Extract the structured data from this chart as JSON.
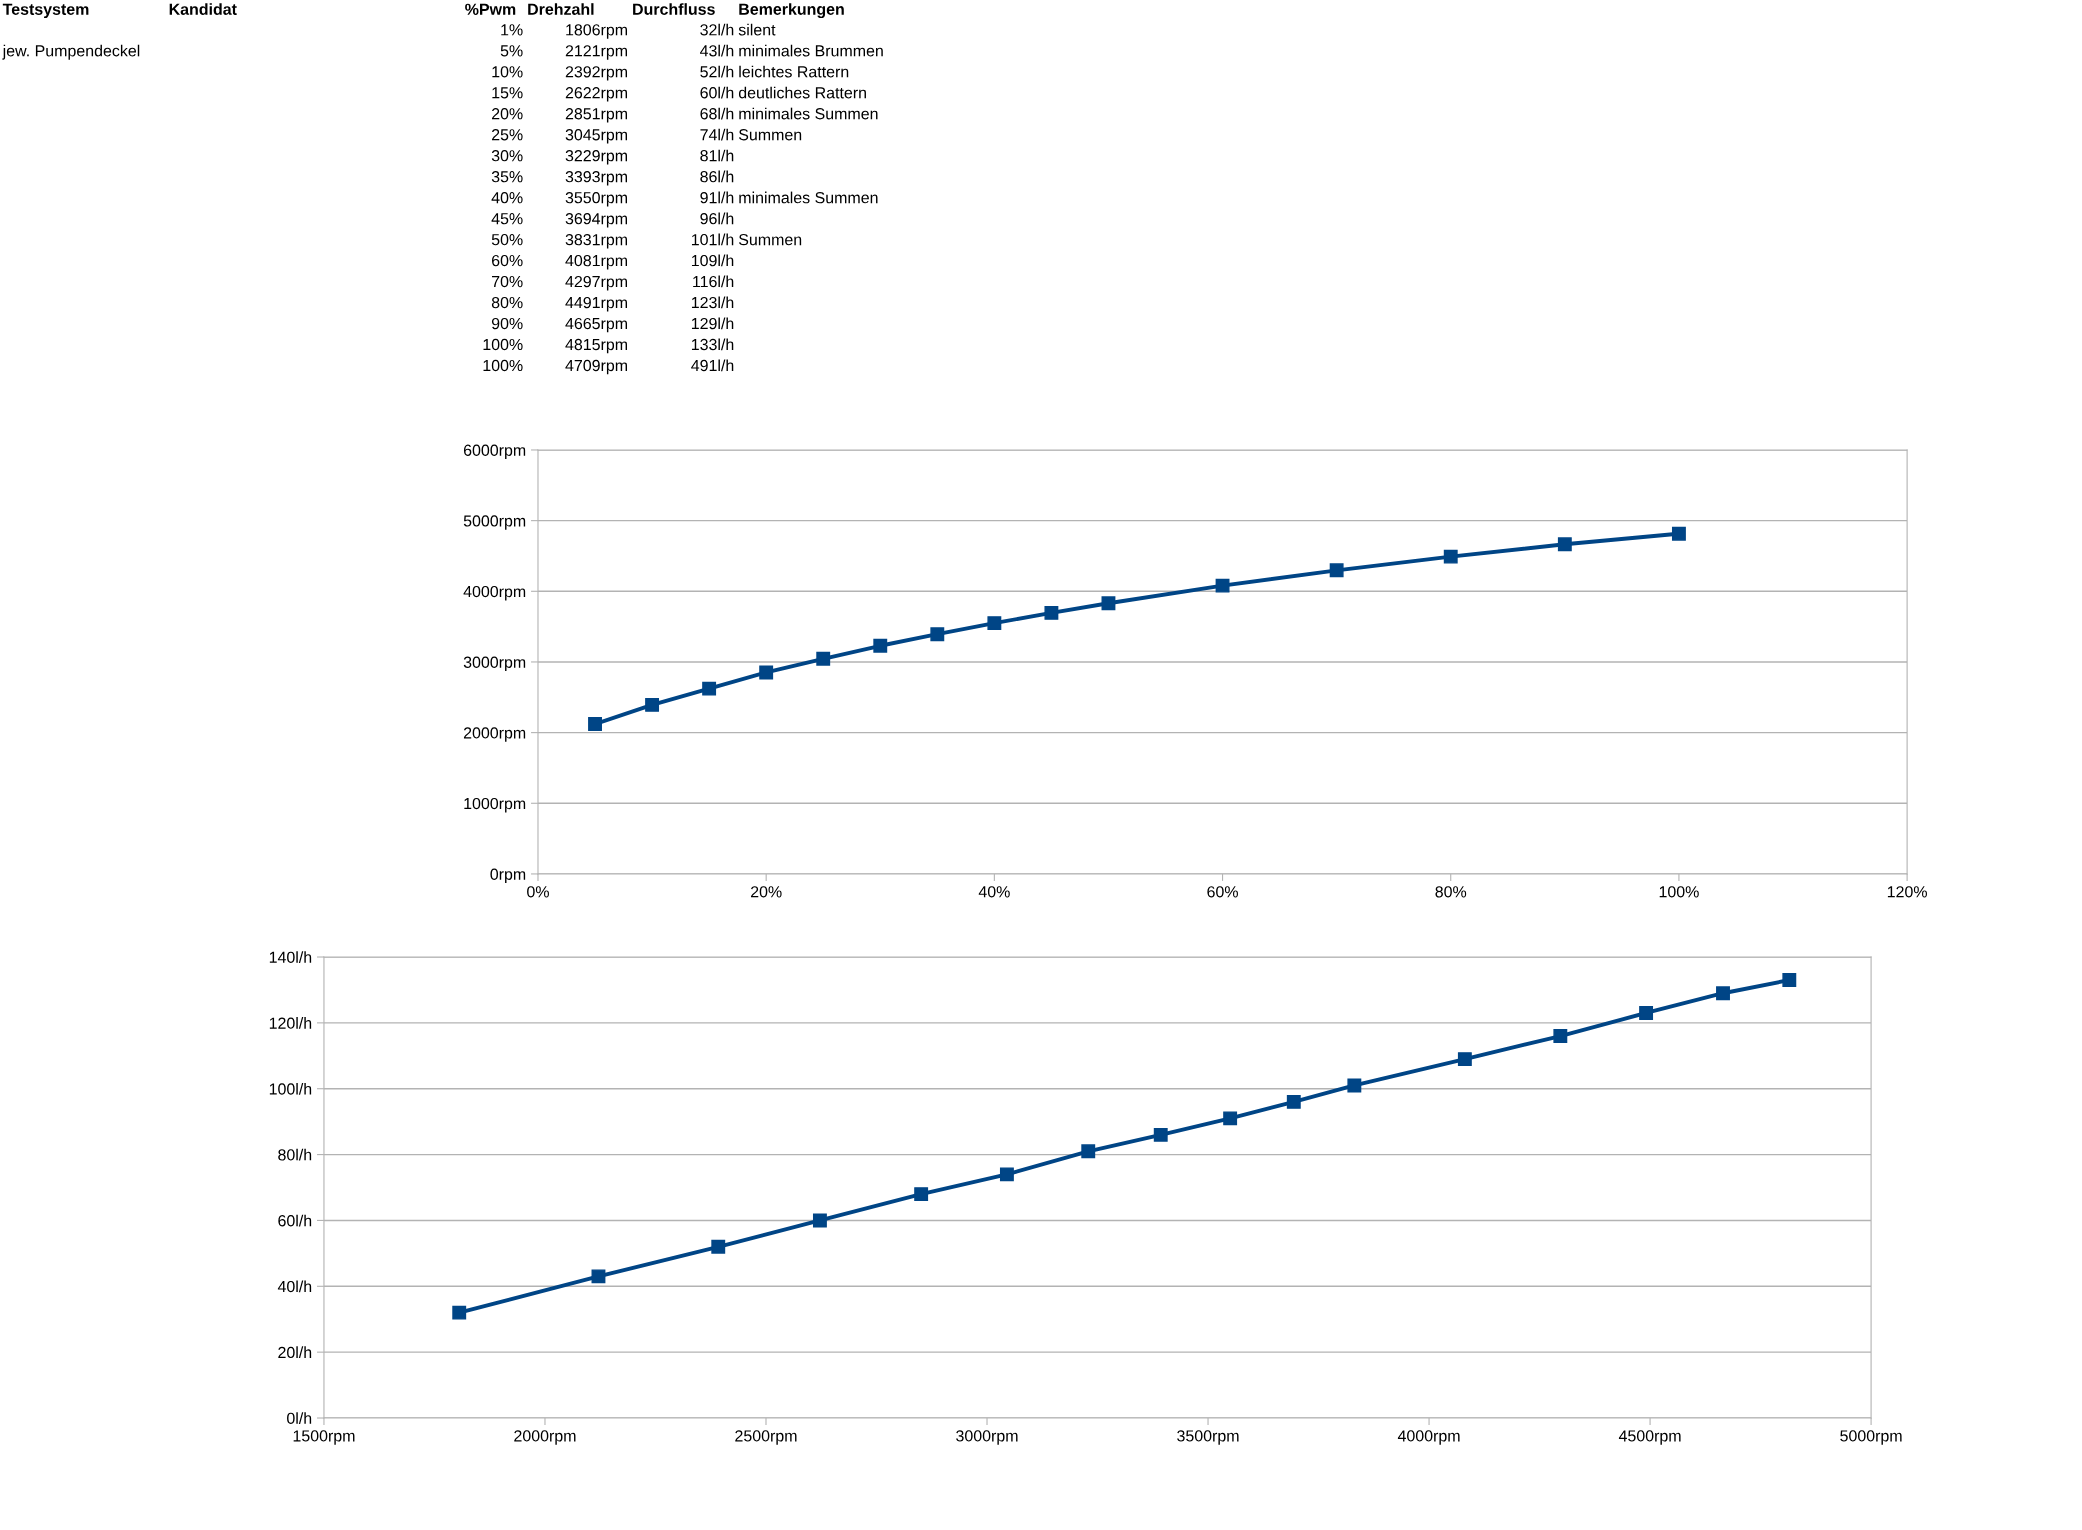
{
  "chart_data": [
    {
      "type": "other",
      "categories": [
        "Testsystem",
        "Kandidat",
        "%Pwm",
        "Drehzahl",
        "Durchfluss",
        "Bemerkungen"
      ],
      "cells": [
        [
          null,
          null,
          "1%",
          "1806rpm",
          "32l/h",
          "silent"
        ],
        [
          "jew. Pumpendeckel",
          null,
          "5%",
          "2121rpm",
          "43l/h",
          "minimales Brummen"
        ],
        [
          null,
          null,
          "10%",
          "2392rpm",
          "52l/h",
          "leichtes Rattern"
        ],
        [
          null,
          null,
          "15%",
          "2622rpm",
          "60l/h",
          "deutliches Rattern"
        ],
        [
          null,
          null,
          "20%",
          "2851rpm",
          "68l/h",
          "minimales Summen"
        ],
        [
          null,
          null,
          "25%",
          "3045rpm",
          "74l/h",
          "Summen"
        ],
        [
          null,
          null,
          "30%",
          "3229rpm",
          "81l/h",
          null
        ],
        [
          null,
          null,
          "35%",
          "3393rpm",
          "86l/h",
          null
        ],
        [
          null,
          null,
          "40%",
          "3550rpm",
          "91l/h",
          "minimales Summen"
        ],
        [
          null,
          null,
          "45%",
          "3694rpm",
          "96l/h",
          null
        ],
        [
          null,
          null,
          "50%",
          "3831rpm",
          "101l/h",
          "Summen"
        ],
        [
          null,
          null,
          "60%",
          "4081rpm",
          "109l/h",
          null
        ],
        [
          null,
          null,
          "70%",
          "4297rpm",
          "116l/h",
          null
        ],
        [
          null,
          null,
          "80%",
          "4491rpm",
          "123l/h",
          null
        ],
        [
          null,
          null,
          "90%",
          "4665rpm",
          "129l/h",
          null
        ],
        [
          null,
          null,
          "100%",
          "4815rpm",
          "133l/h",
          null
        ],
        [
          null,
          null,
          "100%",
          "4709rpm",
          "491l/h",
          null
        ]
      ]
    },
    {
      "type": "line",
      "x": [
        5,
        10,
        15,
        20,
        25,
        30,
        35,
        40,
        45,
        50,
        60,
        70,
        80,
        90,
        100
      ],
      "values": [
        2121,
        2392,
        2622,
        2851,
        3045,
        3229,
        3393,
        3550,
        3694,
        3831,
        4081,
        4297,
        4491,
        4665,
        4815
      ],
      "color": "#004586",
      "marker": "square",
      "grid": "y",
      "xlim": [
        0,
        120
      ],
      "xticks": [
        {
          "value": 0,
          "label": "0%"
        },
        {
          "value": 20,
          "label": "20%"
        },
        {
          "value": 40,
          "label": "40%"
        },
        {
          "value": 60,
          "label": "60%"
        },
        {
          "value": 80,
          "label": "80%"
        },
        {
          "value": 100,
          "label": "100%"
        },
        {
          "value": 120,
          "label": "120%"
        }
      ],
      "ylim": [
        0,
        6000
      ],
      "yticks": [
        {
          "value": 0,
          "label": "0rpm"
        },
        {
          "value": 1000,
          "label": "1000rpm"
        },
        {
          "value": 2000,
          "label": "2000rpm"
        },
        {
          "value": 3000,
          "label": "3000rpm"
        },
        {
          "value": 4000,
          "label": "4000rpm"
        },
        {
          "value": 5000,
          "label": "5000rpm"
        },
        {
          "value": 6000,
          "label": "6000rpm"
        }
      ]
    },
    {
      "type": "line",
      "x": [
        1806,
        2121,
        2392,
        2622,
        2851,
        3045,
        3229,
        3393,
        3550,
        3694,
        3831,
        4081,
        4297,
        4491,
        4665,
        4815
      ],
      "values": [
        32,
        43,
        52,
        60,
        68,
        74,
        81,
        86,
        91,
        96,
        101,
        109,
        116,
        123,
        129,
        133
      ],
      "color": "#004586",
      "marker": "square",
      "grid": "y",
      "xlim": [
        1500,
        5000
      ],
      "xticks": [
        {
          "value": 1500,
          "label": "1500rpm"
        },
        {
          "value": 2000,
          "label": "2000rpm"
        },
        {
          "value": 2500,
          "label": "2500rpm"
        },
        {
          "value": 3000,
          "label": "3000rpm"
        },
        {
          "value": 3500,
          "label": "3500rpm"
        },
        {
          "value": 4000,
          "label": "4000rpm"
        },
        {
          "value": 4500,
          "label": "4500rpm"
        },
        {
          "value": 5000,
          "label": "5000rpm"
        }
      ],
      "ylim": [
        0,
        140
      ],
      "yticks": [
        {
          "value": 0,
          "label": "0l/h"
        },
        {
          "value": 20,
          "label": "20l/h"
        },
        {
          "value": 40,
          "label": "40l/h"
        },
        {
          "value": 60,
          "label": "60l/h"
        },
        {
          "value": 80,
          "label": "80l/h"
        },
        {
          "value": 100,
          "label": "100l/h"
        },
        {
          "value": 120,
          "label": "120l/h"
        },
        {
          "value": 140,
          "label": "140l/h"
        }
      ]
    }
  ]
}
